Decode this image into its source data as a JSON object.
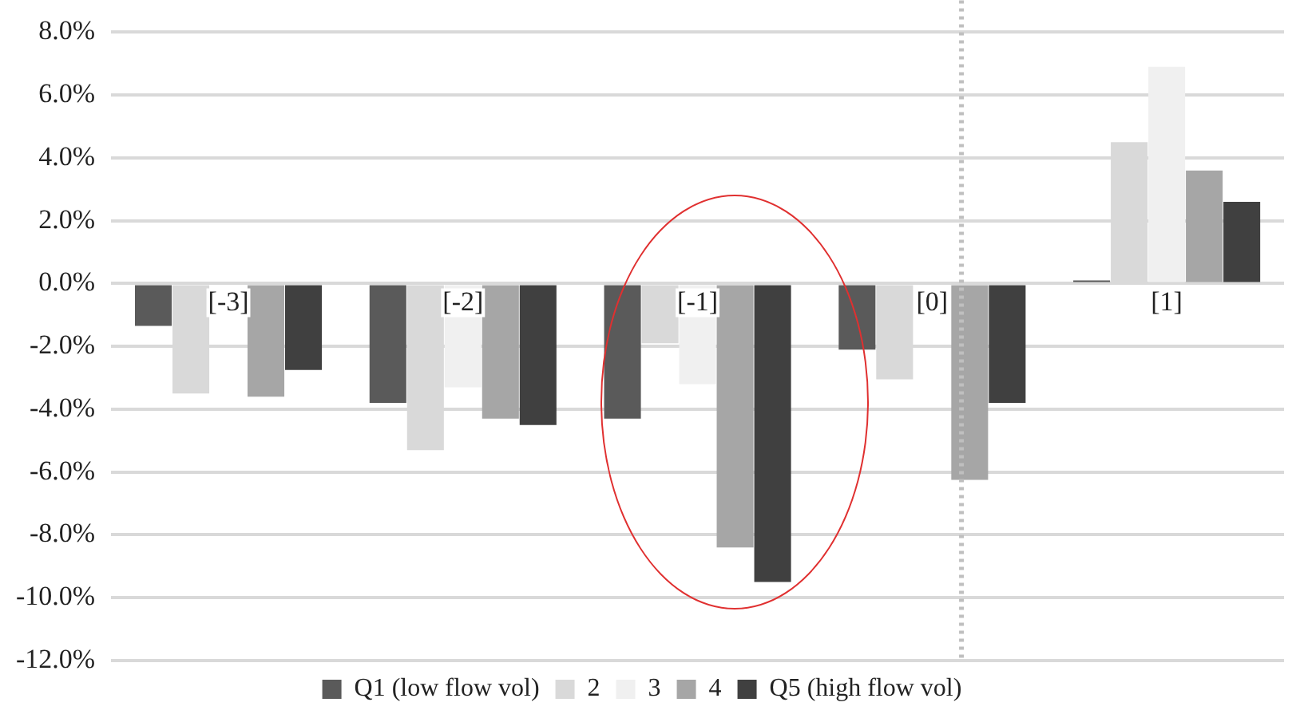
{
  "chart_data": {
    "type": "bar",
    "categories": [
      "[-3]",
      "[-2]",
      "[-1]",
      "[0]",
      "[1]"
    ],
    "series": [
      {
        "name": "Q1 (low flow vol)",
        "color": "#5a5a5a",
        "values": [
          -1.35,
          -3.8,
          -4.3,
          -2.1,
          0.1
        ]
      },
      {
        "name": "2",
        "color": "#d9d9d9",
        "values": [
          -3.5,
          -5.3,
          -1.9,
          -3.05,
          4.5
        ]
      },
      {
        "name": "3",
        "color": "#f0f0f0",
        "values": [
          null,
          -3.3,
          -3.2,
          null,
          6.9
        ]
      },
      {
        "name": "4",
        "color": "#a6a6a6",
        "values": [
          -3.6,
          -4.3,
          -8.4,
          -6.25,
          3.6
        ]
      },
      {
        "name": "Q5 (high flow vol)",
        "color": "#404040",
        "values": [
          -2.75,
          -4.5,
          -9.5,
          -3.8,
          2.6
        ]
      }
    ],
    "ylim": [
      -12,
      8
    ],
    "yticks": [
      {
        "value": -12,
        "label": "-12.0%"
      },
      {
        "value": -10,
        "label": "-10.0%"
      },
      {
        "value": -8,
        "label": "-8.0%"
      },
      {
        "value": -6,
        "label": "-6.0%"
      },
      {
        "value": -4,
        "label": "-4.0%"
      },
      {
        "value": -2,
        "label": "-2.0%"
      },
      {
        "value": 0,
        "label": "0.0%"
      },
      {
        "value": 2,
        "label": "2.0%"
      },
      {
        "value": 4,
        "label": "4.0%"
      },
      {
        "value": 6,
        "label": "6.0%"
      },
      {
        "value": 8,
        "label": "8.0%"
      }
    ],
    "grid": "y",
    "legend": "bottom",
    "ref_lines": [
      {
        "axis": "x",
        "value": "[0]",
        "color": "#bfbfbf",
        "line_style": "dotted"
      }
    ]
  }
}
